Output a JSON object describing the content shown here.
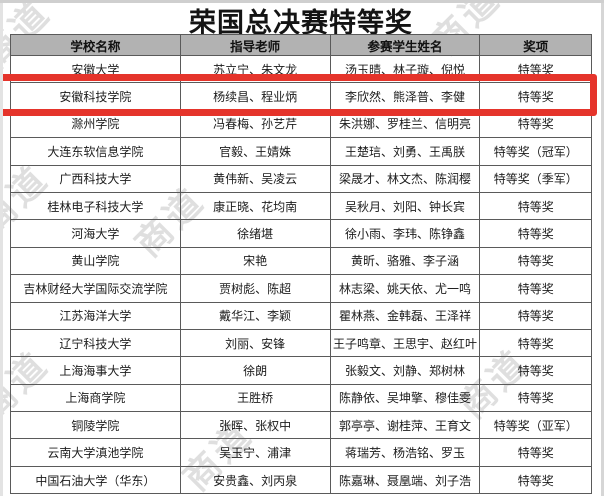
{
  "title": "荣国总决赛特等奖",
  "watermark": {
    "text": "商道",
    "color": "#bdbdbd"
  },
  "highlight": {
    "color": "#e5342b",
    "row_index": 1,
    "school": "安徽科技学院"
  },
  "table": {
    "headers": [
      "学校名称",
      "指导老师",
      "参赛学生姓名",
      "奖项"
    ],
    "rows": [
      {
        "school": "安徽大学",
        "teachers": "苏立宁、朱文龙",
        "students": "汤玉晴、林子璇、倪悦",
        "award": "特等奖"
      },
      {
        "school": "安徽科技学院",
        "teachers": "杨续昌、程业炳",
        "students": "李欣然、熊泽普、李健",
        "award": "特等奖"
      },
      {
        "school": "滁州学院",
        "teachers": "冯春梅、孙艺芹",
        "students": "朱洪娜、罗桂兰、信明亮",
        "award": "特等奖"
      },
      {
        "school": "大连东软信息学院",
        "teachers": "官毅、王婧姝",
        "students": "王楚琂、刘勇、王禹朕",
        "award": "特等奖（冠军）"
      },
      {
        "school": "广西科技大学",
        "teachers": "黄伟新、吴凌云",
        "students": "梁晟才、林文杰、陈润樱",
        "award": "特等奖（季军）"
      },
      {
        "school": "桂林电子科技大学",
        "teachers": "康正晓、花均南",
        "students": "吴秋月、刘阳、钟长宾",
        "award": "特等奖"
      },
      {
        "school": "河海大学",
        "teachers": "徐绪堪",
        "students": "徐小雨、李玮、陈铮鑫",
        "award": "特等奖"
      },
      {
        "school": "黄山学院",
        "teachers": "宋艳",
        "students": "黄昕、骆雅、李子涵",
        "award": "特等奖"
      },
      {
        "school": "吉林财经大学国际交流学院",
        "teachers": "贾树彪、陈超",
        "students": "林志梁、姚天依、尤一鸣",
        "award": "特等奖"
      },
      {
        "school": "江苏海洋大学",
        "teachers": "戴华江、李颖",
        "students": "瞿林燕、金韩磊、王泽祥",
        "award": "特等奖"
      },
      {
        "school": "辽宁科技大学",
        "teachers": "刘丽、安锋",
        "students": "王子鸣章、王思宇、赵红叶",
        "award": "特等奖"
      },
      {
        "school": "上海海事大学",
        "teachers": "徐朗",
        "students": "张毅文、刘静、郑树林",
        "award": "特等奖"
      },
      {
        "school": "上海商学院",
        "teachers": "王胜桥",
        "students": "陈静依、吴坤擎、穆佳雯",
        "award": "特等奖"
      },
      {
        "school": "铜陵学院",
        "teachers": "张晖、张权中",
        "students": "郭亭亭、谢桂萍、王育文",
        "award": "特等奖（亚军）"
      },
      {
        "school": "云南大学滇池学院",
        "teachers": "吴玉宁、浦津",
        "students": "蒋瑞芳、杨浩铭、罗玉",
        "award": "特等奖"
      },
      {
        "school": "中国石油大学（华东）",
        "teachers": "安贵鑫、刘丙泉",
        "students": "陈嘉琳、聂凰端、刘子浩",
        "award": "特等奖"
      }
    ]
  }
}
